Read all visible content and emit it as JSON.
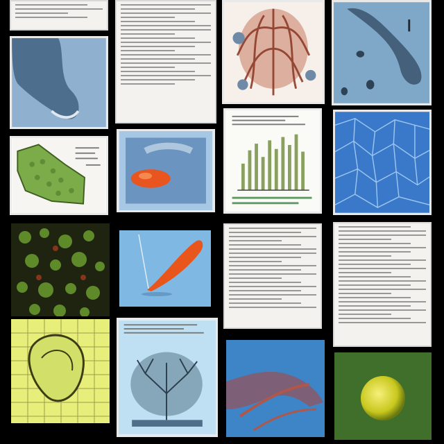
{
  "collage": {
    "tiles": [
      {
        "name": "document-page"
      },
      {
        "name": "document-page"
      },
      {
        "name": "anatomy-illustration"
      },
      {
        "name": "hand-xray-photo"
      },
      {
        "name": "foot-xray-photo"
      },
      {
        "name": "green-tissue-map"
      },
      {
        "name": "orange-organ-image"
      },
      {
        "name": "data-chart-sheet"
      },
      {
        "name": "blue-cell-pattern"
      },
      {
        "name": "green-microscopy-photo"
      },
      {
        "name": "orange-probe-illustration"
      },
      {
        "name": "text-document"
      },
      {
        "name": "text-document"
      },
      {
        "name": "yellow-cell-diagram"
      },
      {
        "name": "tree-network-illustration"
      },
      {
        "name": "blue-hand-illustration"
      },
      {
        "name": "yellow-sphere-image"
      }
    ]
  }
}
